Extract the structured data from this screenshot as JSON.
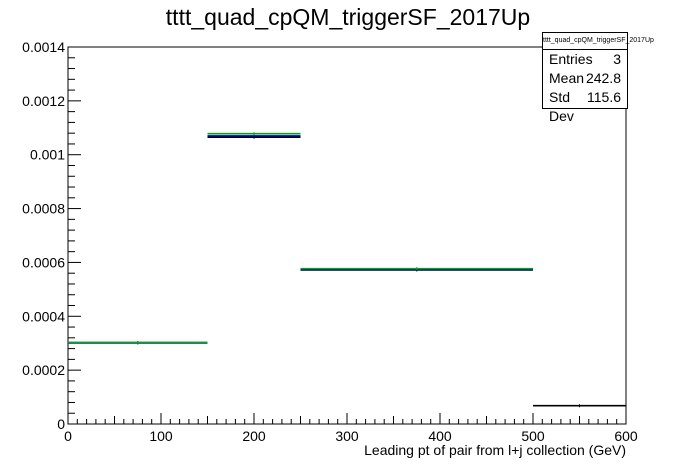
{
  "chart_data": {
    "type": "histogram",
    "title": "tttt_quad_cpQM_triggerSF_2017Up",
    "xlabel": "Leading pt of pair from l+j collection (GeV)",
    "ylabel": "",
    "xlim": [
      0,
      600
    ],
    "ylim": [
      0,
      0.0014
    ],
    "x_ticks": [
      0,
      100,
      200,
      300,
      400,
      500,
      600
    ],
    "x_tick_labels": [
      "0",
      "100",
      "200",
      "300",
      "400",
      "500",
      "600"
    ],
    "y_ticks": [
      0,
      0.0002,
      0.0004,
      0.0006,
      0.0008,
      0.001,
      0.0012,
      0.0014
    ],
    "y_tick_labels": [
      "0",
      "0.0002",
      "0.0004",
      "0.0006",
      "0.0008",
      "0.001",
      "0.0012",
      "0.0014"
    ],
    "grid": false,
    "legend_placement": "top-right",
    "stats_box": {
      "title": "tttt_quad_cpQM_triggerSF_2017Up",
      "rows": [
        {
          "label": "Entries",
          "value": "3"
        },
        {
          "label": "Mean",
          "value": "242.8"
        },
        {
          "label": "Std Dev",
          "value": "115.6"
        }
      ]
    },
    "series": [
      {
        "color": "#000000",
        "bins": [
          {
            "x0": 0,
            "x1": 150,
            "y": 0.000302
          },
          {
            "x0": 150,
            "x1": 250,
            "y": 0.001065
          },
          {
            "x0": 250,
            "x1": 500,
            "y": 0.000572
          },
          {
            "x0": 500,
            "x1": 600,
            "y": 6.8e-05
          }
        ]
      },
      {
        "color": "#0000cc",
        "bins": [
          {
            "x0": 0,
            "x1": 150,
            "y": 0.000301
          },
          {
            "x0": 150,
            "x1": 250,
            "y": 0.00107
          },
          {
            "x0": 250,
            "x1": 500,
            "y": 0.000574
          }
        ]
      },
      {
        "color": "#00aa00",
        "bins": [
          {
            "x0": 0,
            "x1": 150,
            "y": 0.000303
          },
          {
            "x0": 150,
            "x1": 250,
            "y": 0.001078
          },
          {
            "x0": 250,
            "x1": 500,
            "y": 0.000577
          }
        ]
      }
    ]
  }
}
